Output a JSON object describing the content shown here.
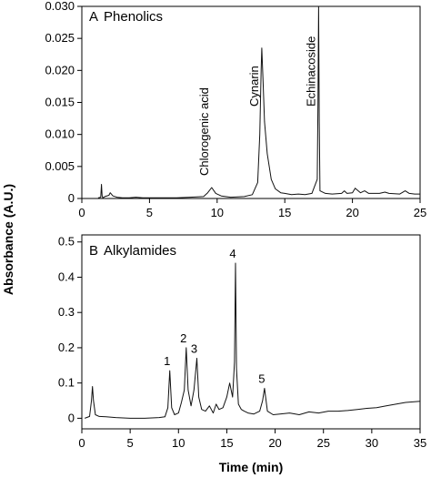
{
  "chart_data": [
    {
      "type": "line",
      "panel_label": "A",
      "title": "Phenolics",
      "xlabel": "",
      "ylabel": "Absorbance (A.U.)",
      "xlim": [
        0,
        25
      ],
      "ylim": [
        0,
        0.03
      ],
      "x_ticks": [
        0,
        5,
        10,
        15,
        20,
        25
      ],
      "y_ticks": [
        0,
        0.005,
        0.01,
        0.015,
        0.02,
        0.025,
        0.03
      ],
      "y_tick_labels": [
        "0",
        "0.005",
        "0.010",
        "0.015",
        "0.020",
        "0.025",
        "0.030"
      ],
      "annotations": [
        {
          "text": "Chlorogenic acid",
          "x": 9.6
        },
        {
          "text": "Cynarin",
          "x": 13.3
        },
        {
          "text": "Echinacoside",
          "x": 17.5
        }
      ],
      "series": [
        {
          "x": [
            1.2,
            1.4,
            1.45,
            1.5,
            1.55,
            1.7,
            2.0,
            2.1,
            2.3,
            2.6,
            3.0,
            3.5,
            4.0,
            4.5,
            5.0,
            6.0,
            7.0,
            8.0,
            9.0,
            9.3,
            9.6,
            9.9,
            10.3,
            11.0,
            12.0,
            12.6,
            13.0,
            13.15,
            13.25,
            13.3,
            13.4,
            13.5,
            13.7,
            14.0,
            14.3,
            14.7,
            15.0,
            15.5,
            16.0,
            16.5,
            17.0,
            17.4,
            17.45,
            17.5,
            17.55,
            17.6,
            18.0,
            18.5,
            19.2,
            19.4,
            19.6,
            20.0,
            20.2,
            20.6,
            20.9,
            21.2,
            22.0,
            22.4,
            22.7,
            23.5,
            23.9,
            24.2,
            24.6,
            25.0
          ],
          "y": [
            0.0001,
            0.0002,
            0.0022,
            0.0004,
            0.0001,
            0.0003,
            0.0005,
            0.0009,
            0.0004,
            0.0002,
            0.0001,
            0.0001,
            0.0002,
            0.0001,
            0.0001,
            0.0001,
            0.0001,
            0.0002,
            0.0003,
            0.0009,
            0.0017,
            0.0008,
            0.0004,
            0.0002,
            0.0003,
            0.0006,
            0.0025,
            0.01,
            0.02,
            0.0235,
            0.018,
            0.012,
            0.007,
            0.003,
            0.0015,
            0.0009,
            0.0008,
            0.0006,
            0.0007,
            0.0006,
            0.0008,
            0.003,
            0.015,
            0.03,
            0.012,
            0.0012,
            0.0008,
            0.0007,
            0.0008,
            0.0012,
            0.0008,
            0.0009,
            0.0016,
            0.0009,
            0.0012,
            0.0008,
            0.0008,
            0.001,
            0.0008,
            0.0007,
            0.0012,
            0.0008,
            0.0007,
            0.0007
          ]
        }
      ]
    },
    {
      "type": "line",
      "panel_label": "B",
      "title": "Alkylamides",
      "xlabel": "Time (min)",
      "ylabel": "Absorbance (A.U.)",
      "xlim": [
        0,
        35
      ],
      "ylim": [
        -0.03,
        0.52
      ],
      "x_ticks": [
        0,
        5,
        10,
        15,
        20,
        25,
        30,
        35
      ],
      "y_ticks": [
        0,
        0.1,
        0.2,
        0.3,
        0.4,
        0.5
      ],
      "y_tick_labels": [
        "0",
        "0.1",
        "0.2",
        "0.3",
        "0.4",
        "0.5"
      ],
      "annotations": [
        {
          "text": "1",
          "x": 9.1
        },
        {
          "text": "2",
          "x": 10.8
        },
        {
          "text": "3",
          "x": 11.9
        },
        {
          "text": "4",
          "x": 15.9
        },
        {
          "text": "5",
          "x": 18.9
        }
      ],
      "series": [
        {
          "x": [
            0.3,
            0.8,
            1.0,
            1.1,
            1.2,
            1.4,
            1.8,
            2.5,
            3.5,
            5.0,
            6.5,
            8.0,
            8.6,
            8.9,
            9.1,
            9.3,
            9.6,
            10.0,
            10.3,
            10.6,
            10.8,
            11.0,
            11.3,
            11.6,
            11.9,
            12.1,
            12.4,
            12.8,
            13.2,
            13.6,
            13.9,
            14.2,
            14.6,
            15.0,
            15.3,
            15.6,
            15.8,
            15.9,
            16.0,
            16.2,
            16.5,
            16.8,
            17.2,
            17.8,
            18.4,
            18.7,
            18.9,
            19.2,
            19.8,
            20.5,
            21.5,
            22.5,
            23.5,
            24.5,
            25.5,
            26.5,
            27.5,
            28.5,
            29.5,
            30.5,
            31.5,
            32.5,
            33.5,
            35.0
          ],
          "y": [
            0.0,
            0.005,
            0.05,
            0.09,
            0.05,
            0.01,
            0.005,
            0.004,
            0.002,
            0.0,
            0.0,
            0.002,
            0.004,
            0.03,
            0.135,
            0.03,
            0.01,
            0.015,
            0.045,
            0.08,
            0.2,
            0.08,
            0.035,
            0.08,
            0.17,
            0.06,
            0.025,
            0.02,
            0.035,
            0.015,
            0.04,
            0.025,
            0.03,
            0.06,
            0.1,
            0.06,
            0.16,
            0.44,
            0.14,
            0.04,
            0.025,
            0.02,
            0.015,
            0.012,
            0.02,
            0.05,
            0.085,
            0.02,
            0.01,
            0.012,
            0.015,
            0.01,
            0.018,
            0.015,
            0.02,
            0.02,
            0.022,
            0.025,
            0.028,
            0.03,
            0.035,
            0.04,
            0.045,
            0.048
          ]
        }
      ]
    }
  ]
}
